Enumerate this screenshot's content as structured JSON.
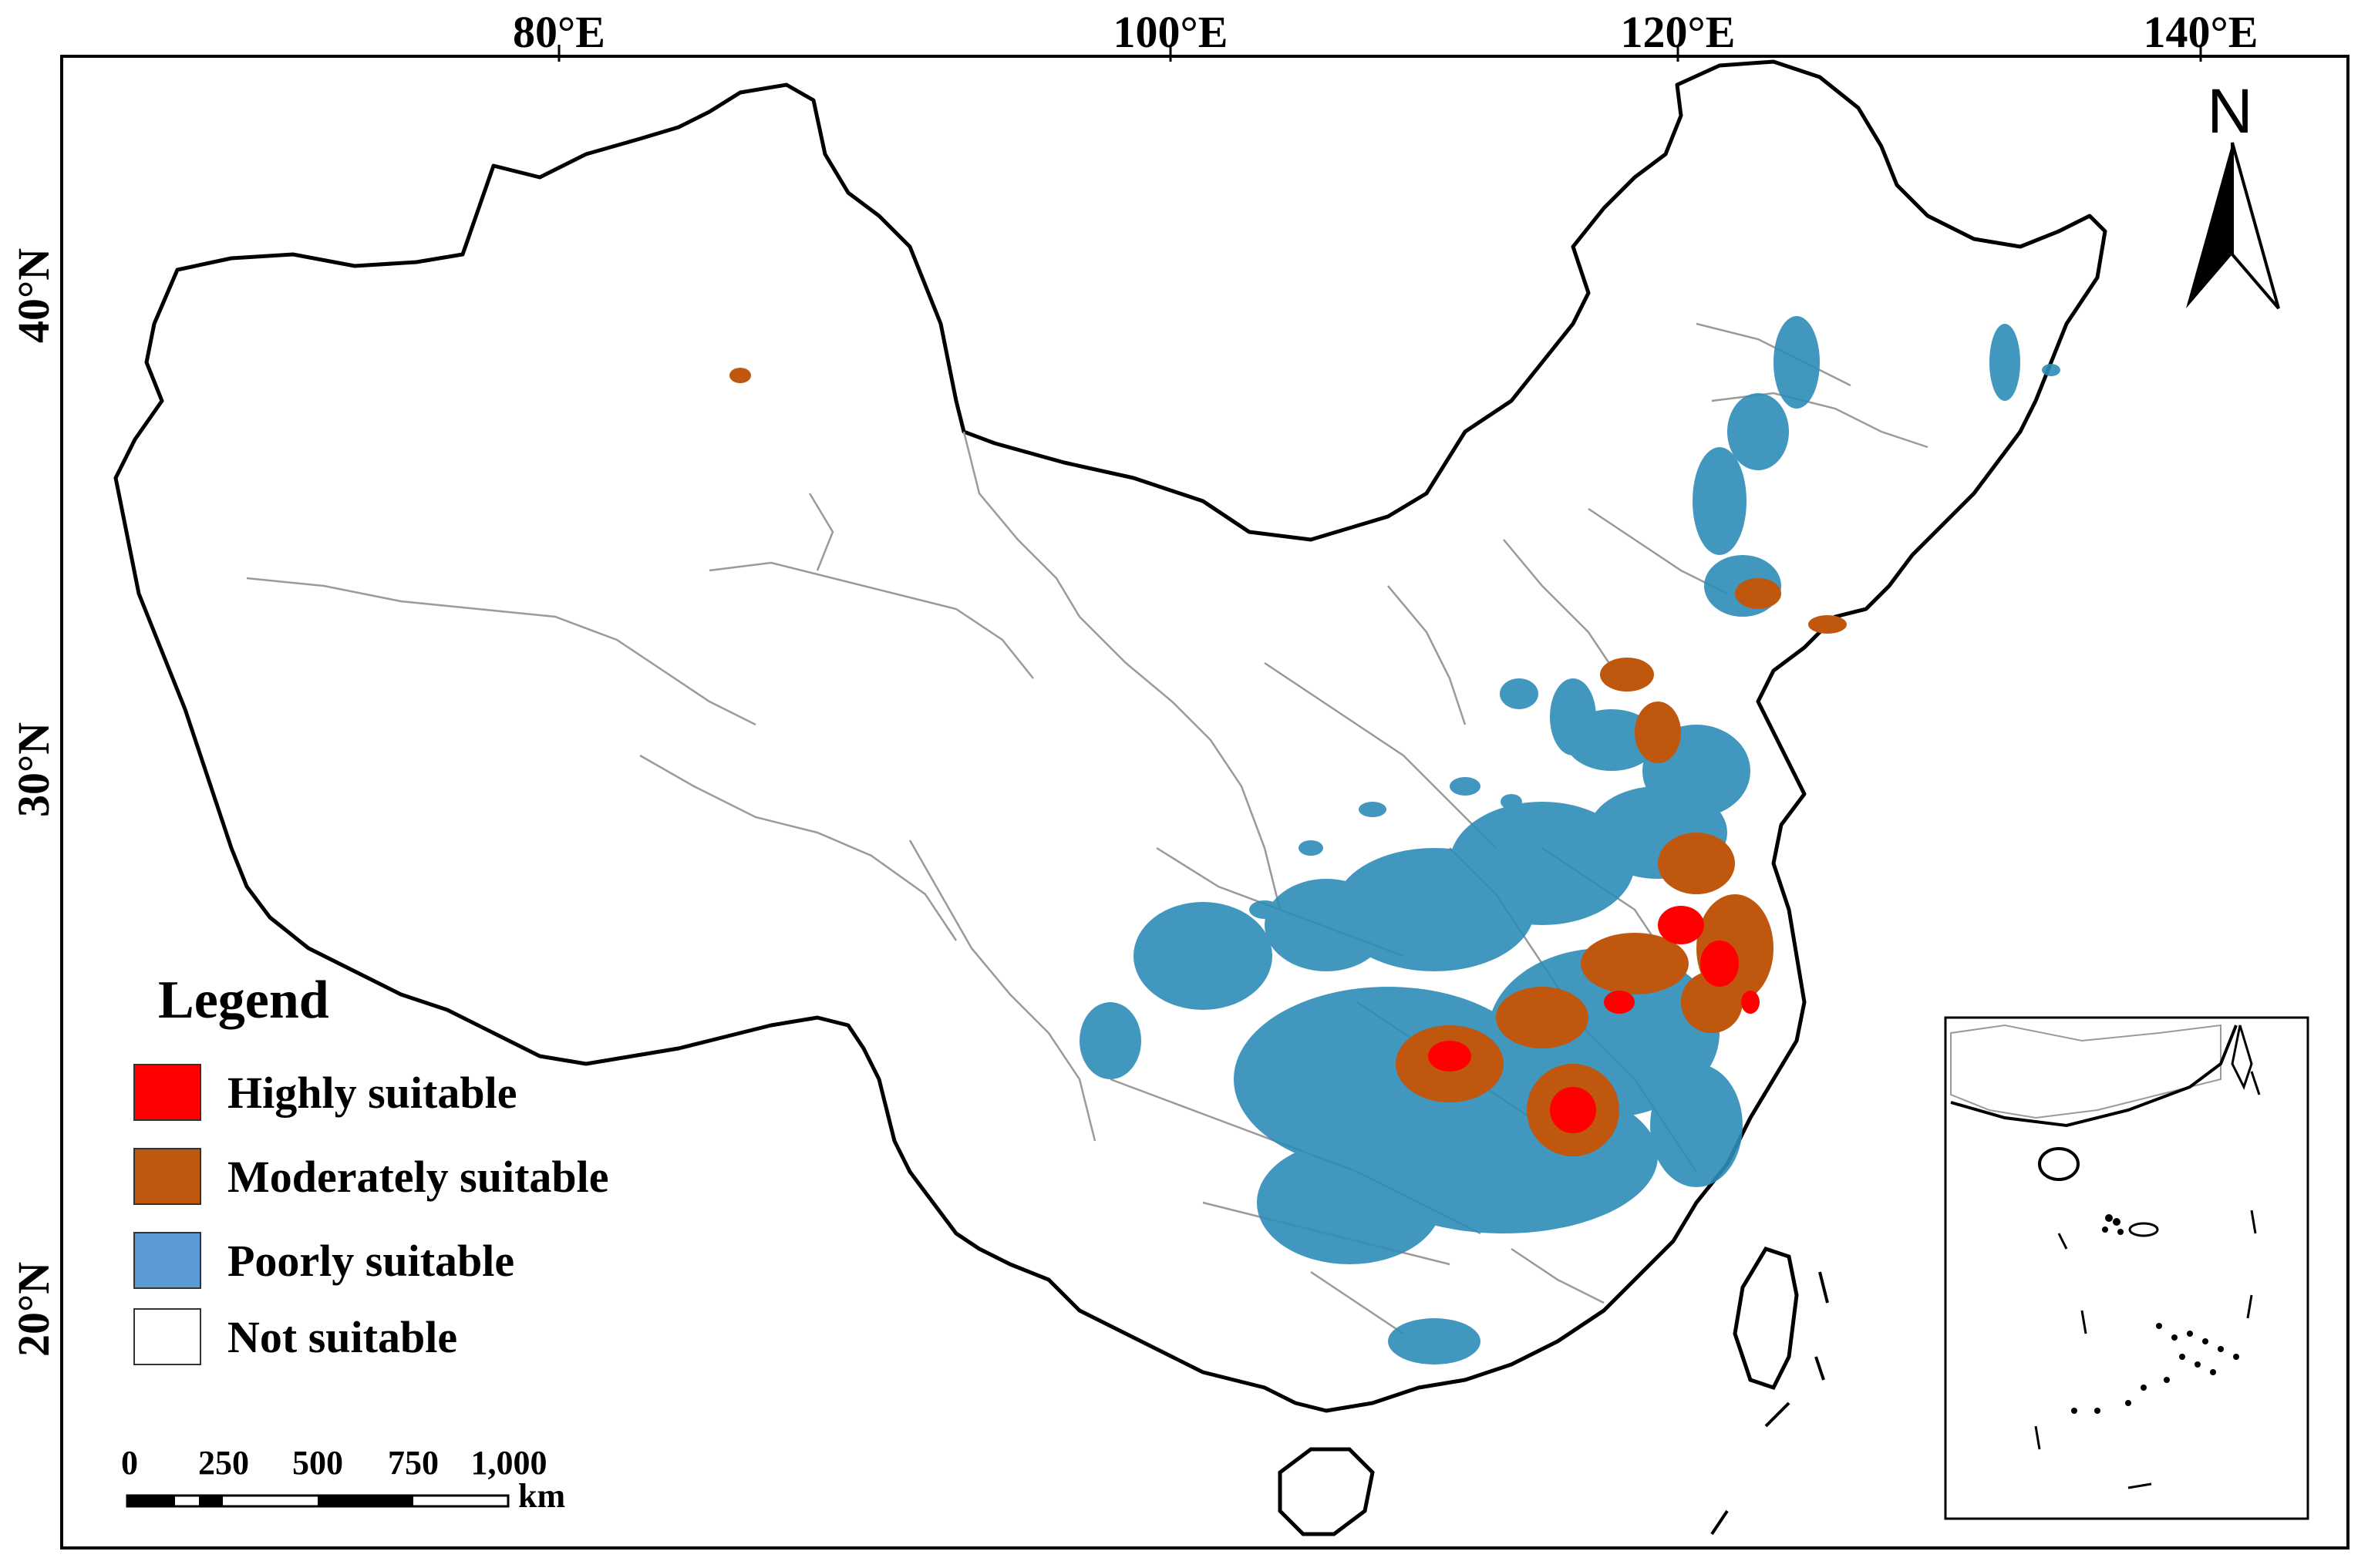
{
  "longitude_labels": [
    "80°E",
    "100°E",
    "120°E",
    "140°E"
  ],
  "latitude_labels": [
    "40°N",
    "30°N",
    "20°N"
  ],
  "north_arrow": {
    "label": "N"
  },
  "legend": {
    "title": "Legend",
    "items": [
      {
        "label": "Highly suitable",
        "color": "#ff0000"
      },
      {
        "label": "Moderately suitable",
        "color": "#c0570f"
      },
      {
        "label": "Poorly suitable",
        "color": "#5b9bd5"
      },
      {
        "label": "Not suitable",
        "color": "#ffffff"
      }
    ]
  },
  "scale_bar": {
    "ticks": [
      "0",
      "250",
      "500",
      "750",
      "1,000"
    ],
    "unit": "km"
  },
  "colors": {
    "highly": "#ff0000",
    "moderately": "#c0570f",
    "poorly": "#5b9bd5",
    "poorly_dark": "#2e8cb8",
    "border": "#000000",
    "province": "#9a9a9a"
  }
}
